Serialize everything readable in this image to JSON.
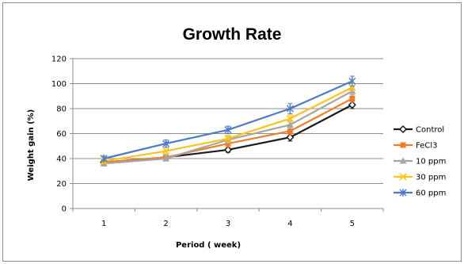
{
  "chart_data": {
    "type": "line",
    "title": "Growth Rate",
    "xlabel": "Period ( week)",
    "ylabel": "Weight gain (%)",
    "categories": [
      "1",
      "2",
      "3",
      "4",
      "5"
    ],
    "ylim": [
      0,
      120
    ],
    "yticks": [
      "0",
      "20",
      "40",
      "60",
      "80",
      "100",
      "120"
    ],
    "grid": true,
    "legend_position": "right",
    "series": [
      {
        "name": "Control",
        "color": "#1a1a1a",
        "marker": "diamond",
        "values": [
          37,
          41,
          47,
          57,
          83
        ],
        "error": [
          2,
          2,
          2,
          3,
          3
        ]
      },
      {
        "name": "FeCl3",
        "color": "#f07d2c",
        "marker": "square",
        "values": [
          37,
          41,
          52,
          62,
          88
        ],
        "error": [
          2,
          2,
          3,
          3,
          3
        ]
      },
      {
        "name": "10 ppm",
        "color": "#a5a5a5",
        "marker": "triangle",
        "values": [
          36,
          40,
          55,
          67,
          94
        ],
        "error": [
          2,
          2,
          3,
          3,
          3
        ]
      },
      {
        "name": "30 ppm",
        "color": "#ffc21c",
        "marker": "x",
        "values": [
          38,
          46,
          56,
          72,
          97
        ],
        "error": [
          2,
          3,
          3,
          3,
          3
        ]
      },
      {
        "name": "60 ppm",
        "color": "#4d7ac7",
        "marker": "star",
        "values": [
          40,
          52,
          63,
          80,
          102
        ],
        "error": [
          2,
          3,
          3,
          4,
          4
        ]
      }
    ]
  }
}
